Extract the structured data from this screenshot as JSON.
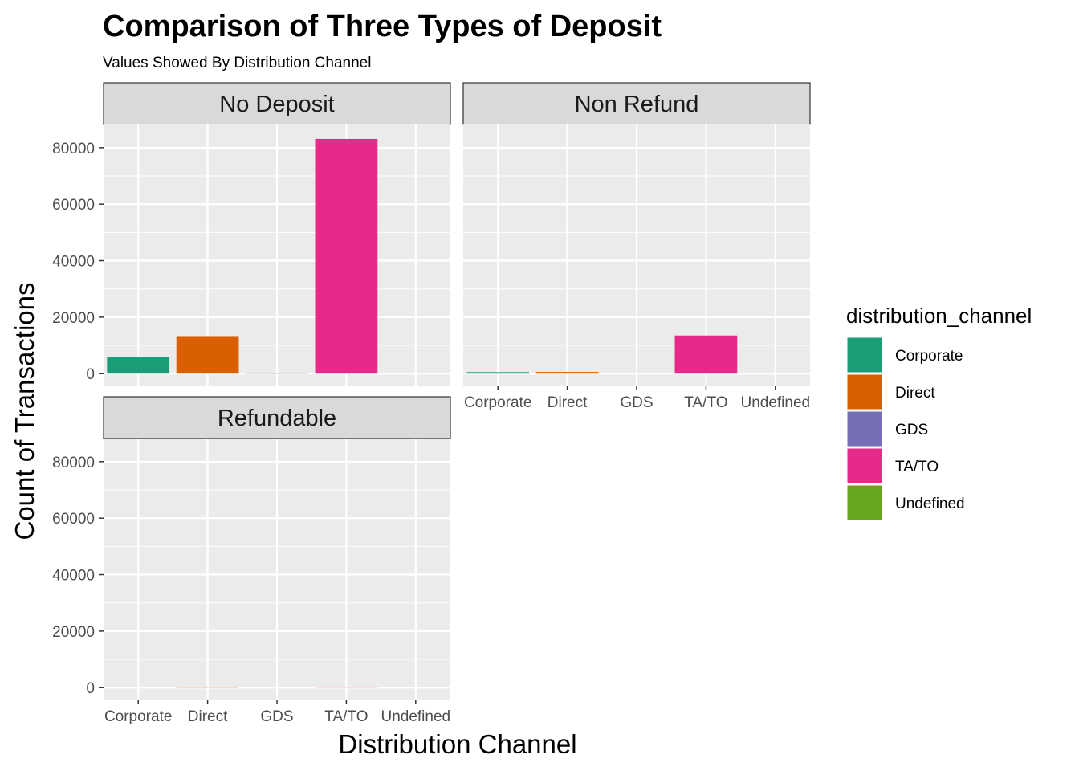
{
  "chart_data": {
    "type": "bar",
    "title": "Comparison of Three Types of Deposit",
    "subtitle": "Values Showed By Distribution Channel",
    "xlabel": "Distribution Channel",
    "ylabel": "Count of Transactions",
    "categories": [
      "Corporate",
      "Direct",
      "GDS",
      "TA/TO",
      "Undefined"
    ],
    "ylim": [
      -4200,
      88200
    ],
    "yticks": [
      0,
      20000,
      40000,
      60000,
      80000
    ],
    "ytick_labels": [
      "0",
      "20000",
      "40000",
      "60000",
      "80000"
    ],
    "grid": true,
    "legend": {
      "title": "distribution_channel",
      "position": "right",
      "entries": [
        "Corporate",
        "Direct",
        "GDS",
        "TA/TO",
        "Undefined"
      ]
    },
    "colors": {
      "Corporate": "#1B9E77",
      "Direct": "#D95F02",
      "GDS": "#7570B3",
      "TA/TO": "#E7298A",
      "Undefined": "#66A61E"
    },
    "panel_background": "#EBEBEB",
    "strip_background": "#D9D9D9",
    "panels": [
      {
        "name": "No Deposit",
        "values": [
          5900,
          13300,
          190,
          83100,
          1
        ]
      },
      {
        "name": "Non Refund",
        "values": [
          550,
          600,
          0,
          13500,
          0
        ]
      },
      {
        "name": "Refundable",
        "values": [
          3,
          100,
          0,
          50,
          0
        ]
      }
    ]
  }
}
